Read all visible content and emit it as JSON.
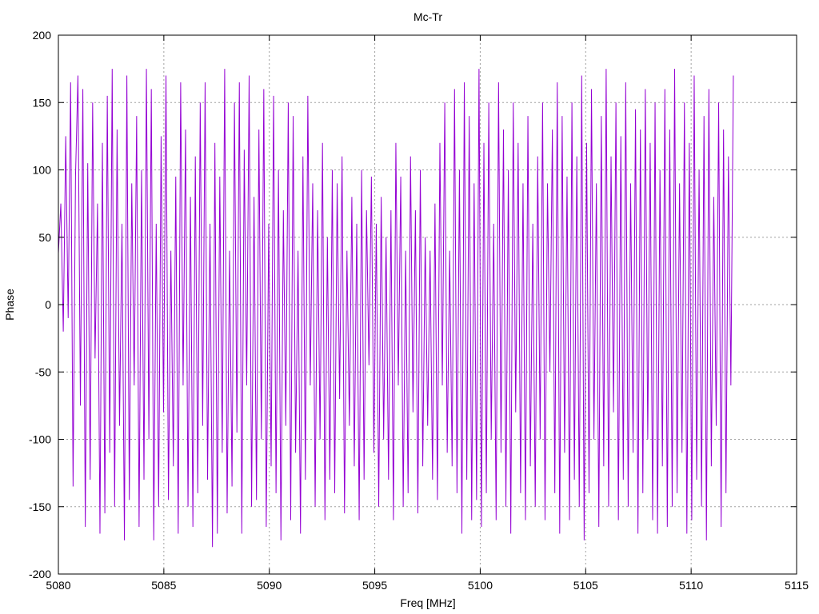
{
  "chart_data": {
    "type": "line",
    "title": "Mc-Tr",
    "xlabel": "Freq [MHz]",
    "ylabel": "Phase",
    "xlim": [
      5080,
      5115
    ],
    "ylim": [
      -200,
      200
    ],
    "xticks": [
      5080,
      5085,
      5090,
      5095,
      5100,
      5105,
      5110,
      5115
    ],
    "yticks": [
      -200,
      -150,
      -100,
      -50,
      0,
      50,
      100,
      150,
      200
    ],
    "grid": true,
    "series": [
      {
        "color": "#9400d3",
        "x_start": 5080,
        "x_end": 5112,
        "values": [
          38,
          75,
          -20,
          125,
          -10,
          165,
          -135,
          95,
          170,
          -75,
          160,
          -165,
          105,
          -130,
          150,
          -40,
          75,
          -170,
          120,
          -155,
          155,
          -110,
          175,
          -150,
          130,
          -90,
          60,
          -175,
          170,
          -145,
          90,
          -60,
          140,
          -165,
          100,
          -130,
          175,
          -100,
          160,
          -175,
          60,
          -150,
          125,
          -80,
          170,
          -145,
          40,
          -120,
          95,
          -170,
          165,
          -60,
          130,
          -150,
          80,
          -165,
          110,
          -140,
          150,
          -90,
          165,
          -130,
          60,
          -180,
          120,
          -170,
          95,
          -110,
          175,
          -155,
          40,
          -135,
          150,
          -95,
          165,
          -170,
          115,
          -60,
          170,
          -150,
          80,
          -145,
          130,
          -100,
          160,
          -165,
          60,
          -120,
          155,
          -140,
          100,
          -175,
          70,
          -90,
          150,
          -160,
          140,
          -110,
          40,
          -170,
          110,
          -130,
          155,
          -60,
          90,
          -150,
          70,
          -100,
          120,
          -160,
          50,
          -130,
          100,
          -140,
          90,
          -70,
          110,
          -155,
          40,
          -90,
          80,
          -120,
          60,
          -160,
          100,
          -130,
          70,
          -45,
          95,
          -110,
          60,
          -150,
          80,
          -100,
          50,
          -130,
          70,
          -160,
          120,
          -60,
          95,
          -150,
          40,
          -140,
          110,
          -80,
          70,
          -155,
          100,
          -120,
          50,
          -90,
          40,
          -130,
          75,
          -145,
          120,
          -60,
          150,
          -110,
          40,
          -120,
          160,
          -140,
          100,
          -170,
          165,
          -130,
          140,
          -160,
          90,
          -145,
          175,
          -165,
          120,
          -140,
          150,
          -100,
          60,
          -160,
          165,
          -110,
          130,
          -150,
          100,
          -170,
          150,
          -80,
          120,
          -140,
          90,
          -160,
          140,
          -120,
          60,
          -150,
          110,
          -100,
          150,
          -160,
          90,
          -50,
          130,
          -140,
          165,
          -170,
          140,
          -110,
          95,
          -160,
          150,
          -130,
          110,
          -150,
          170,
          -175,
          120,
          -140,
          160,
          -100,
          90,
          -165,
          140,
          -120,
          175,
          -150,
          110,
          -80,
          150,
          -160,
          125,
          -130,
          165,
          -150,
          90,
          -110,
          145,
          -170,
          130,
          -140,
          160,
          -100,
          120,
          -160,
          150,
          -170,
          100,
          -120,
          160,
          -165,
          130,
          -150,
          175,
          -140,
          90,
          -110,
          150,
          -170,
          120,
          -160,
          170,
          -130,
          100,
          -150,
          140,
          -175,
          160,
          -120,
          80,
          -90,
          150,
          -165,
          130,
          -140,
          110,
          -60,
          170
        ]
      }
    ]
  }
}
